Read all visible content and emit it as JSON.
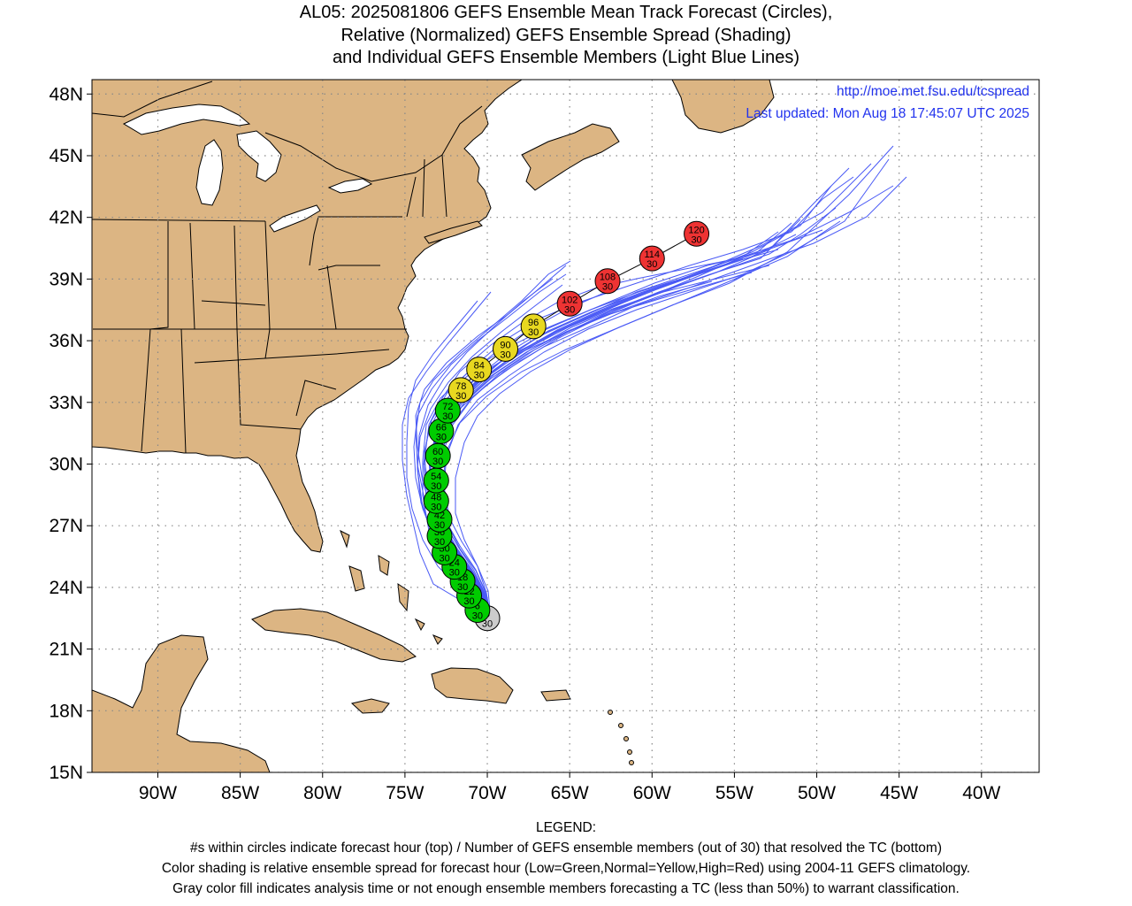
{
  "title": {
    "line1": "AL05: 2025081806 GEFS Ensemble Mean Track Forecast (Circles),",
    "line2": "Relative (Normalized) GEFS Ensemble Spread (Shading)",
    "line3": "and Individual GEFS Ensemble Members (Light Blue Lines)"
  },
  "credit": {
    "url": "http://moe.met.fsu.edu/tcspread",
    "updated": "Last updated: Mon Aug 18 17:45:07 UTC 2025"
  },
  "axes": {
    "lat_labels": [
      "48N",
      "45N",
      "42N",
      "39N",
      "36N",
      "33N",
      "30N",
      "27N",
      "24N",
      "21N",
      "18N",
      "15N"
    ],
    "lat_values": [
      48,
      45,
      42,
      39,
      36,
      33,
      30,
      27,
      24,
      21,
      18,
      15
    ],
    "lon_labels": [
      "90W",
      "85W",
      "80W",
      "75W",
      "70W",
      "65W",
      "60W",
      "55W",
      "50W",
      "45W",
      "40W"
    ],
    "lon_values": [
      -90,
      -85,
      -80,
      -75,
      -70,
      -65,
      -60,
      -55,
      -50,
      -45,
      -40
    ],
    "lon_range": [
      -94,
      -36.5
    ],
    "lat_range": [
      15,
      48.7
    ],
    "grid": "dotted"
  },
  "colors": {
    "land": "#dcb583",
    "ocean": "#ffffff",
    "member_tracks": "#4a5af5",
    "low_spread": "#00cc00",
    "normal_spread": "#e8d820",
    "high_spread": "#ee3333",
    "analysis": "#cccccc"
  },
  "mean_track": [
    {
      "hour": "0",
      "members": "30",
      "lon": -70.0,
      "lat": 22.5,
      "spread": "analysis"
    },
    {
      "hour": "6",
      "members": "30",
      "lon": -70.6,
      "lat": 22.9,
      "spread": "low"
    },
    {
      "hour": "12",
      "members": "30",
      "lon": -71.1,
      "lat": 23.6,
      "spread": "low"
    },
    {
      "hour": "18",
      "members": "30",
      "lon": -71.5,
      "lat": 24.3,
      "spread": "low"
    },
    {
      "hour": "24",
      "members": "30",
      "lon": -72.0,
      "lat": 25.0,
      "spread": "low"
    },
    {
      "hour": "30",
      "members": "30",
      "lon": -72.6,
      "lat": 25.7,
      "spread": "low"
    },
    {
      "hour": "36",
      "members": "30",
      "lon": -72.9,
      "lat": 26.5,
      "spread": "low"
    },
    {
      "hour": "42",
      "members": "30",
      "lon": -72.9,
      "lat": 27.3,
      "spread": "low"
    },
    {
      "hour": "48",
      "members": "30",
      "lon": -73.1,
      "lat": 28.2,
      "spread": "low"
    },
    {
      "hour": "54",
      "members": "30",
      "lon": -73.1,
      "lat": 29.2,
      "spread": "low"
    },
    {
      "hour": "60",
      "members": "30",
      "lon": -73.0,
      "lat": 30.4,
      "spread": "low"
    },
    {
      "hour": "66",
      "members": "30",
      "lon": -72.8,
      "lat": 31.6,
      "spread": "low"
    },
    {
      "hour": "72",
      "members": "30",
      "lon": -72.4,
      "lat": 32.6,
      "spread": "low"
    },
    {
      "hour": "78",
      "members": "30",
      "lon": -71.6,
      "lat": 33.6,
      "spread": "normal"
    },
    {
      "hour": "84",
      "members": "30",
      "lon": -70.5,
      "lat": 34.6,
      "spread": "normal"
    },
    {
      "hour": "90",
      "members": "30",
      "lon": -68.9,
      "lat": 35.6,
      "spread": "normal"
    },
    {
      "hour": "96",
      "members": "30",
      "lon": -67.2,
      "lat": 36.7,
      "spread": "normal"
    },
    {
      "hour": "102",
      "members": "30",
      "lon": -65.0,
      "lat": 37.8,
      "spread": "high"
    },
    {
      "hour": "108",
      "members": "30",
      "lon": -62.7,
      "lat": 38.9,
      "spread": "high"
    },
    {
      "hour": "114",
      "members": "30",
      "lon": -60.0,
      "lat": 40.0,
      "spread": "high"
    },
    {
      "hour": "120",
      "members": "30",
      "lon": -57.3,
      "lat": 41.2,
      "spread": "high"
    }
  ],
  "legend": {
    "heading": "LEGEND:",
    "line1": "#s within circles indicate forecast hour (top) / Number of GEFS ensemble members (out of 30) that resolved the TC (bottom)",
    "line2": "Color shading is relative ensemble spread for forecast hour (Low=Green,Normal=Yellow,High=Red) using 2004-11 GEFS climatology.",
    "line3": "Gray color fill indicates analysis time or not enough ensemble members forecasting a TC (less than 50%) to warrant classification."
  }
}
